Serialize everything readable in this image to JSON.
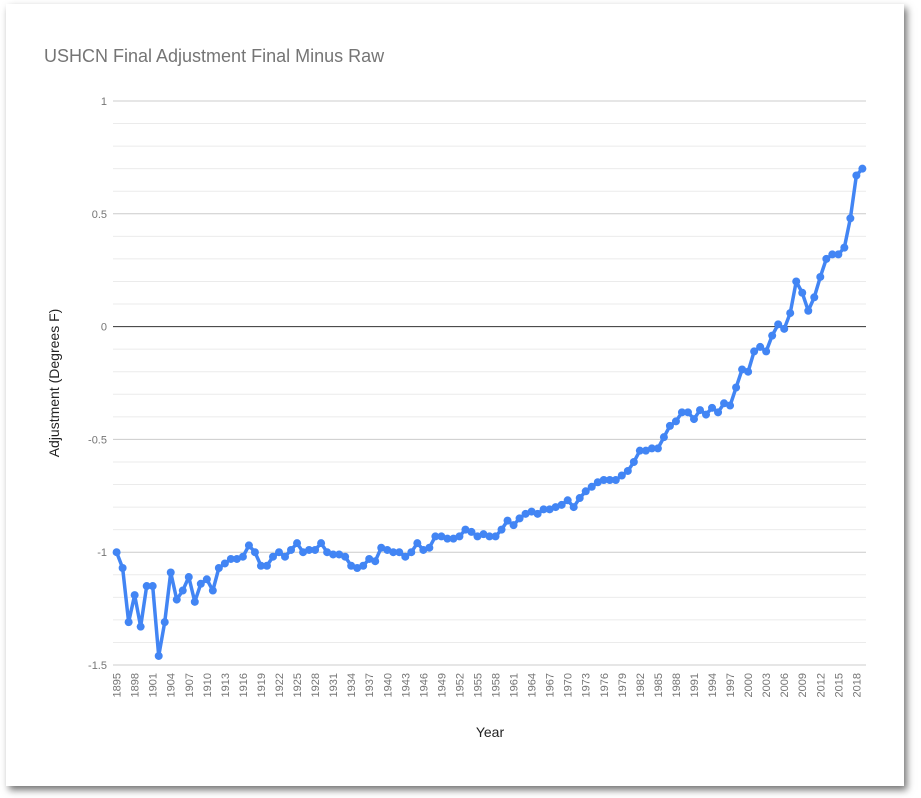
{
  "chart_data": {
    "type": "line",
    "title": "USHCN Final Adjustment   Final Minus Raw",
    "x_label": "Year",
    "y_label": "Adjustment (Degrees F)",
    "x": [
      1895,
      1896,
      1897,
      1898,
      1899,
      1900,
      1901,
      1902,
      1903,
      1904,
      1905,
      1906,
      1907,
      1908,
      1909,
      1910,
      1911,
      1912,
      1913,
      1914,
      1915,
      1916,
      1917,
      1918,
      1919,
      1920,
      1921,
      1922,
      1923,
      1924,
      1925,
      1926,
      1927,
      1928,
      1929,
      1930,
      1931,
      1932,
      1933,
      1934,
      1935,
      1936,
      1937,
      1938,
      1939,
      1940,
      1941,
      1942,
      1943,
      1944,
      1945,
      1946,
      1947,
      1948,
      1949,
      1950,
      1951,
      1952,
      1953,
      1954,
      1955,
      1956,
      1957,
      1958,
      1959,
      1960,
      1961,
      1962,
      1963,
      1964,
      1965,
      1966,
      1967,
      1968,
      1969,
      1970,
      1971,
      1972,
      1973,
      1974,
      1975,
      1976,
      1977,
      1978,
      1979,
      1980,
      1981,
      1982,
      1983,
      1984,
      1985,
      1986,
      1987,
      1988,
      1989,
      1990,
      1991,
      1992,
      1993,
      1994,
      1995,
      1996,
      1997,
      1998,
      1999,
      2000,
      2001,
      2002,
      2003,
      2004,
      2005,
      2006,
      2007,
      2008,
      2009,
      2010,
      2011,
      2012,
      2013,
      2014,
      2015,
      2016,
      2017,
      2018,
      2019
    ],
    "series": [
      {
        "color": "#4285f4",
        "values": [
          -1.0,
          -1.07,
          -1.31,
          -1.19,
          -1.33,
          -1.15,
          -1.15,
          -1.46,
          -1.31,
          -1.09,
          -1.21,
          -1.17,
          -1.11,
          -1.22,
          -1.14,
          -1.12,
          -1.17,
          -1.07,
          -1.05,
          -1.03,
          -1.03,
          -1.02,
          -0.97,
          -1.0,
          -1.06,
          -1.06,
          -1.02,
          -1.0,
          -1.02,
          -0.99,
          -0.96,
          -1.0,
          -0.99,
          -0.99,
          -0.96,
          -1.0,
          -1.01,
          -1.01,
          -1.02,
          -1.06,
          -1.07,
          -1.06,
          -1.03,
          -1.04,
          -0.98,
          -0.99,
          -1.0,
          -1.0,
          -1.02,
          -1.0,
          -0.96,
          -0.99,
          -0.98,
          -0.93,
          -0.93,
          -0.94,
          -0.94,
          -0.93,
          -0.9,
          -0.91,
          -0.93,
          -0.92,
          -0.93,
          -0.93,
          -0.9,
          -0.86,
          -0.88,
          -0.85,
          -0.83,
          -0.82,
          -0.83,
          -0.81,
          -0.81,
          -0.8,
          -0.79,
          -0.77,
          -0.8,
          -0.76,
          -0.73,
          -0.71,
          -0.69,
          -0.68,
          -0.68,
          -0.68,
          -0.66,
          -0.64,
          -0.6,
          -0.55,
          -0.55,
          -0.54,
          -0.54,
          -0.49,
          -0.44,
          -0.42,
          -0.38,
          -0.38,
          -0.41,
          -0.37,
          -0.39,
          -0.36,
          -0.38,
          -0.34,
          -0.35,
          -0.27,
          -0.19,
          -0.2,
          -0.11,
          -0.09,
          -0.11,
          -0.04,
          0.01,
          -0.01,
          0.06,
          0.2,
          0.15,
          0.07,
          0.13,
          0.22,
          0.3,
          0.32,
          0.32,
          0.35,
          0.48,
          0.67,
          0.7
        ]
      }
    ],
    "xlim": [
      1894.4,
      2019.6
    ],
    "xticks": [
      1895,
      1898,
      1901,
      1904,
      1907,
      1910,
      1913,
      1916,
      1919,
      1922,
      1925,
      1928,
      1931,
      1934,
      1937,
      1940,
      1943,
      1946,
      1949,
      1952,
      1955,
      1958,
      1961,
      1964,
      1967,
      1970,
      1973,
      1976,
      1979,
      1982,
      1985,
      1988,
      1991,
      1994,
      1997,
      2000,
      2003,
      2006,
      2009,
      2012,
      2015,
      2018
    ],
    "ylim": [
      -1.5,
      1
    ],
    "yticks": [
      -1.5,
      -1,
      -0.5,
      0,
      0.5,
      1
    ],
    "minor_yticks": [
      -1.4,
      -1.3,
      -1.2,
      -1.1,
      -0.9,
      -0.8,
      -0.7,
      -0.6,
      -0.4,
      -0.3,
      -0.2,
      -0.1,
      0.1,
      0.2,
      0.3,
      0.4,
      0.6,
      0.7,
      0.8,
      0.9
    ],
    "grid": true
  }
}
